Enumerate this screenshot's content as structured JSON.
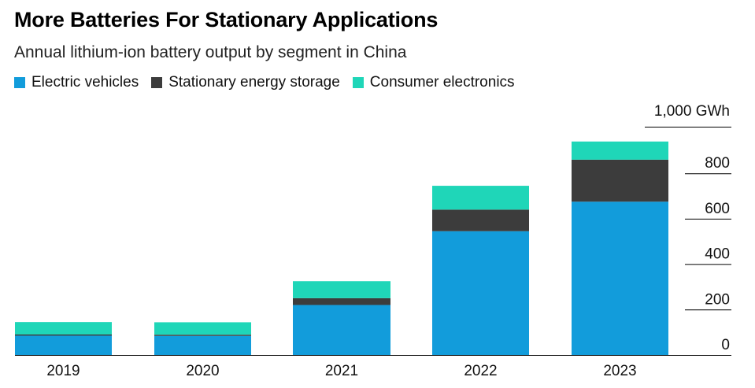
{
  "title": "More Batteries For Stationary Applications",
  "subtitle": "Annual lithium-ion battery output by segment in China",
  "colors": {
    "electric_vehicles": "#129cdb",
    "stationary_storage": "#3c3c3c",
    "consumer_electronics": "#1fd6b8",
    "gridline": "#000000",
    "text": "#000000"
  },
  "chart_data": {
    "type": "bar",
    "stacked": true,
    "title": "More Batteries For Stationary Applications",
    "subtitle": "Annual lithium-ion battery output by segment in China",
    "categories": [
      "2019",
      "2020",
      "2021",
      "2022",
      "2023"
    ],
    "series": [
      {
        "name": "Electric vehicles",
        "color": "#129cdb",
        "values": [
          85,
          84,
          220,
          545,
          675
        ]
      },
      {
        "name": "Stationary energy storage",
        "color": "#3c3c3c",
        "values": [
          5,
          5,
          30,
          95,
          185
        ]
      },
      {
        "name": "Consumer electronics",
        "color": "#1fd6b8",
        "values": [
          55,
          55,
          75,
          105,
          80
        ]
      }
    ],
    "y_unit_label": "1,000 GWh",
    "yticks": [
      0,
      200,
      400,
      600,
      800
    ],
    "ylim": [
      0,
      1000
    ],
    "y_axis_position": "right",
    "legend_position": "top-left",
    "grid": false
  }
}
